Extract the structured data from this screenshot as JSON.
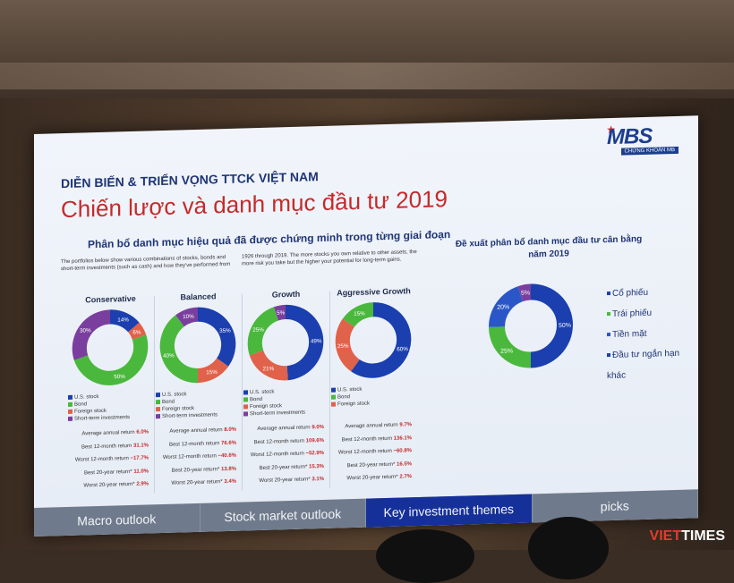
{
  "slide": {
    "logo": "MBS",
    "logo_sub": "CHỨNG KHOÁN MB",
    "header": "DIỄN BIẾN & TRIỂN VỌNG TTCK VIỆT NAM",
    "title": "Chiến lược và danh mục đầu tư 2019",
    "subtitle": "Phân bổ danh mục hiệu quả đã được chứng minh trong từng giai đoạn",
    "intro_left": "The portfolios below show various combinations of stocks, bonds and short-term investments (such as cash) and how they've performed from",
    "intro_right": "1926 through 2019. The more stocks you own relative to other assets, the more risk you take but the higher your potential for long-term gains.",
    "colors": {
      "us_stock": "#1b3fae",
      "bond": "#4ab83c",
      "foreign_stock": "#e0624a",
      "short_term": "#7a3f9e",
      "cash": "#2a56c8"
    },
    "portfolios": [
      {
        "name": "Conservative",
        "slices": [
          {
            "key": "us_stock",
            "value": 14
          },
          {
            "key": "foreign_stock",
            "value": 6
          },
          {
            "key": "bond",
            "value": 50
          },
          {
            "key": "short_term",
            "value": 30
          }
        ],
        "labels": [
          "14%",
          "6%",
          "50%",
          "30%"
        ],
        "legend": [
          "U.S. stock",
          "Bond",
          "Foreign stock",
          "Short-term investments"
        ],
        "stats": [
          {
            "label": "Average annual return",
            "value": "6.0%"
          },
          {
            "label": "Best 12-month return",
            "value": "31.1%"
          },
          {
            "label": "Worst 12-month return",
            "value": "−17.7%"
          },
          {
            "label": "Best 20-year return*",
            "value": "11.0%"
          },
          {
            "label": "Worst 20-year return*",
            "value": "2.9%"
          }
        ]
      },
      {
        "name": "Balanced",
        "slices": [
          {
            "key": "us_stock",
            "value": 35
          },
          {
            "key": "foreign_stock",
            "value": 15
          },
          {
            "key": "bond",
            "value": 40
          },
          {
            "key": "short_term",
            "value": 10
          }
        ],
        "labels": [
          "35%",
          "15%",
          "40%",
          "10%"
        ],
        "legend": [
          "U.S. stock",
          "Bond",
          "Foreign stock",
          "Short-term investments"
        ],
        "stats": [
          {
            "label": "Average annual return",
            "value": "8.0%"
          },
          {
            "label": "Best 12-month return",
            "value": "76.6%"
          },
          {
            "label": "Worst 12-month return",
            "value": "−40.6%"
          },
          {
            "label": "Best 20-year return*",
            "value": "13.8%"
          },
          {
            "label": "Worst 20-year return*",
            "value": "3.4%"
          }
        ]
      },
      {
        "name": "Growth",
        "slices": [
          {
            "key": "us_stock",
            "value": 49
          },
          {
            "key": "foreign_stock",
            "value": 21
          },
          {
            "key": "bond",
            "value": 25
          },
          {
            "key": "short_term",
            "value": 5
          }
        ],
        "labels": [
          "49%",
          "21%",
          "25%",
          "5%"
        ],
        "legend": [
          "U.S. stock",
          "Bond",
          "Foreign stock",
          "Short-term investments"
        ],
        "stats": [
          {
            "label": "Average annual return",
            "value": "9.0%"
          },
          {
            "label": "Best 12-month return",
            "value": "109.6%"
          },
          {
            "label": "Worst 12-month return",
            "value": "−52.9%"
          },
          {
            "label": "Best 20-year return*",
            "value": "15.3%"
          },
          {
            "label": "Worst 20-year return*",
            "value": "3.1%"
          }
        ]
      },
      {
        "name": "Aggressive Growth",
        "slices": [
          {
            "key": "us_stock",
            "value": 60
          },
          {
            "key": "foreign_stock",
            "value": 25
          },
          {
            "key": "bond",
            "value": 15
          }
        ],
        "labels": [
          "60%",
          "25%",
          "15%"
        ],
        "legend": [
          "U.S. stock",
          "Bond",
          "Foreign stock"
        ],
        "stats": [
          {
            "label": "Average annual return",
            "value": "9.7%"
          },
          {
            "label": "Best 12-month return",
            "value": "136.1%"
          },
          {
            "label": "Worst 12-month return",
            "value": "−60.8%"
          },
          {
            "label": "Best 20-year return*",
            "value": "16.5%"
          },
          {
            "label": "Worst 20-year return*",
            "value": "2.7%"
          }
        ]
      }
    ],
    "recommendation": {
      "title": "Đề xuất phân bổ danh mục đầu tư cân bằng năm 2019",
      "slices": [
        {
          "key": "us_stock",
          "value": 50
        },
        {
          "key": "bond",
          "value": 25
        },
        {
          "key": "cash",
          "value": 20
        },
        {
          "key": "short_term",
          "value": 5
        }
      ],
      "labels": [
        "50%",
        "25%",
        "20%",
        "5%"
      ],
      "legend": [
        "Cổ phiếu",
        "Trái phiếu",
        "Tiền mặt",
        "Đầu tư ngắn hạn khác"
      ]
    },
    "tabs": [
      {
        "label": "Macro outlook",
        "active": false
      },
      {
        "label": "Stock market outlook",
        "active": false
      },
      {
        "label": "Key investment themes",
        "active": true
      },
      {
        "label": "picks",
        "active": false
      }
    ]
  },
  "watermark": {
    "brand_a": "VIET",
    "brand_b": "TIMES"
  }
}
